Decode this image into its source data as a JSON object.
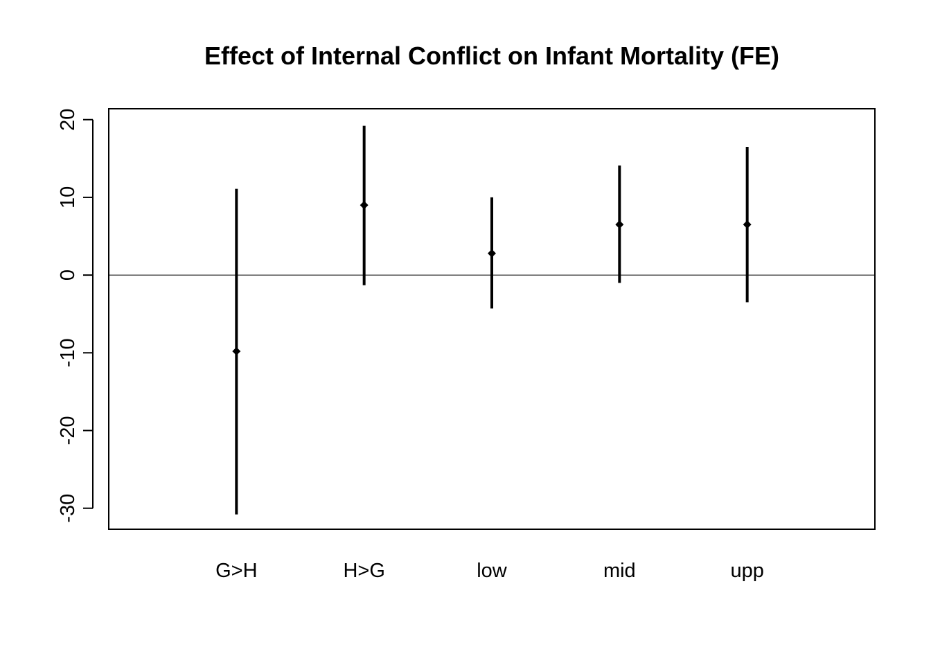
{
  "chart_data": {
    "type": "errorbar",
    "title": "Effect of Internal Conflict on Infant Mortality (FE)",
    "xlabel": "",
    "ylabel": "",
    "categories": [
      "G>H",
      "H>G",
      "low",
      "mid",
      "upp"
    ],
    "estimates": [
      -9.8,
      9.0,
      2.8,
      6.5,
      6.5
    ],
    "lower": [
      -30.8,
      -1.3,
      -4.3,
      -1.0,
      -3.5
    ],
    "upper": [
      11.1,
      19.2,
      10.0,
      14.1,
      16.5
    ],
    "ylim": [
      -32.7,
      21.4
    ],
    "yticks": [
      -30,
      -20,
      -10,
      0,
      10,
      20
    ],
    "reference_line": 0,
    "grid": false,
    "legend": "none",
    "colors": {
      "marks": "#000000",
      "axes": "#000000",
      "background": "#ffffff"
    }
  }
}
